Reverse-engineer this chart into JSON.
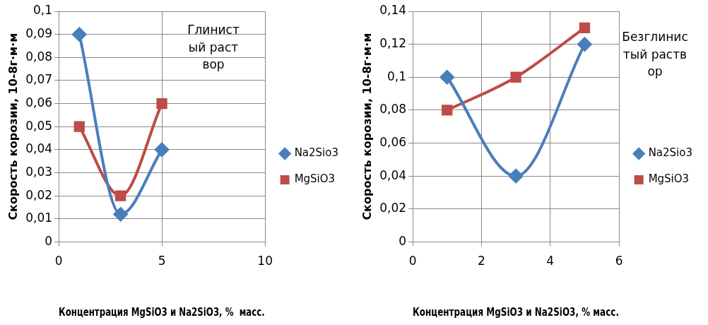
{
  "chart_data": [
    {
      "type": "line",
      "xlabel": "Концентрация MgSiO3 и Na2SiO3, %  масс.",
      "ylabel": "Скорость корозии, 10-8г·м·м",
      "annotations": [
        "Глинистый раствор"
      ],
      "x": [
        1,
        3,
        5
      ],
      "xlim": [
        0,
        10
      ],
      "xticks": [
        0,
        5,
        10
      ],
      "ylim": [
        0,
        0.1
      ],
      "yticks": [
        0,
        {
          "value": 0.01,
          "label": "0,01"
        },
        {
          "value": 0.02,
          "label": "0,02"
        },
        {
          "value": 0.03,
          "label": "0,03"
        },
        {
          "value": 0.04,
          "label": "0,04"
        },
        {
          "value": 0.05,
          "label": "0,05"
        },
        {
          "value": 0.06,
          "label": "0,06"
        },
        {
          "value": 0.07,
          "label": "0,07"
        },
        {
          "value": 0.08,
          "label": "0,08"
        },
        {
          "value": 0.09,
          "label": "0,09"
        },
        {
          "value": 0.1,
          "label": "0,1"
        }
      ],
      "series": [
        {
          "name": "Na2Sio3",
          "color": "#4a7ebb",
          "marker": "diamond",
          "values": [
            0.09,
            0.012,
            0.04
          ]
        },
        {
          "name": "MgSiO3",
          "color": "#be4b48",
          "marker": "square",
          "values": [
            0.05,
            0.02,
            0.06
          ]
        }
      ],
      "grid": true,
      "legend": "right"
    },
    {
      "type": "line",
      "xlabel": "Концентрация MgSiO3 и Na2SiO3, % масс.",
      "ylabel": "Скорость корозии, 10-8г·м·м",
      "annotations": [
        "Безглинистый раствор"
      ],
      "x": [
        1,
        3,
        5
      ],
      "xlim": [
        0,
        6
      ],
      "xticks": [
        0,
        2,
        4,
        6
      ],
      "ylim": [
        0,
        0.14
      ],
      "yticks": [
        0,
        {
          "value": 0.02,
          "label": "0,02"
        },
        {
          "value": 0.04,
          "label": "0,04"
        },
        {
          "value": 0.06,
          "label": "0,06"
        },
        {
          "value": 0.08,
          "label": "0,08"
        },
        {
          "value": 0.1,
          "label": "0,1"
        },
        {
          "value": 0.12,
          "label": "0,12"
        },
        {
          "value": 0.14,
          "label": "0,14"
        }
      ],
      "series": [
        {
          "name": "Na2Sio3",
          "color": "#4a7ebb",
          "marker": "diamond",
          "values": [
            0.1,
            0.04,
            0.12
          ]
        },
        {
          "name": "MgSiO3",
          "color": "#be4b48",
          "marker": "square",
          "values": [
            0.08,
            0.1,
            0.13
          ]
        }
      ],
      "grid": true,
      "legend": "right"
    }
  ]
}
